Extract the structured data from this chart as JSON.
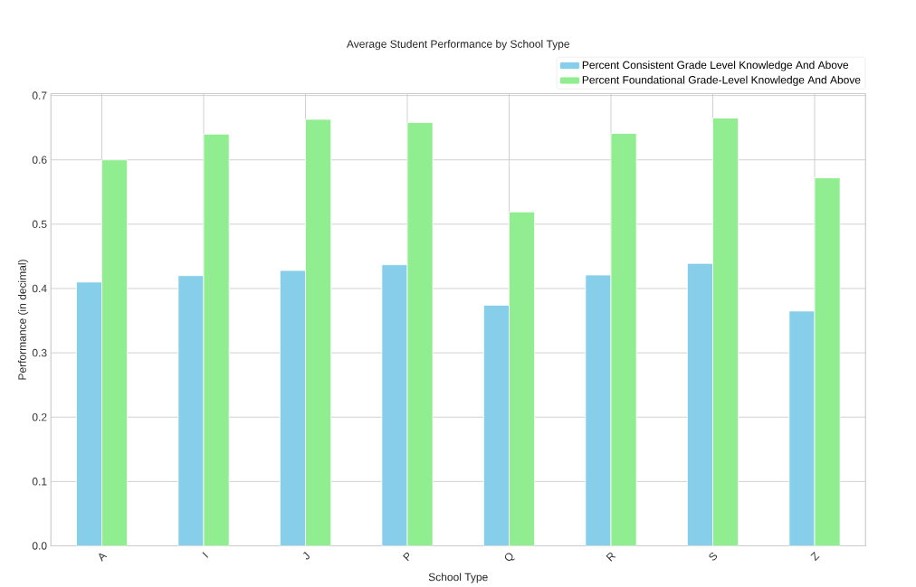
{
  "chart_data": {
    "type": "bar",
    "title": "Average Student Performance by School Type",
    "xlabel": "School Type",
    "ylabel": "Performance (in decimal)",
    "categories": [
      "A",
      "I",
      "J",
      "P",
      "Q",
      "R",
      "S",
      "Z"
    ],
    "series": [
      {
        "name": "Percent Consistent Grade Level Knowledge And Above",
        "color": "#87ceeb",
        "values": [
          0.41,
          0.42,
          0.428,
          0.437,
          0.374,
          0.421,
          0.439,
          0.365
        ]
      },
      {
        "name": "Percent Foundational Grade-Level Knowledge And Above",
        "color": "#90ee90",
        "values": [
          0.6,
          0.64,
          0.663,
          0.658,
          0.519,
          0.641,
          0.665,
          0.572
        ]
      }
    ],
    "ylim": [
      0,
      0.703
    ],
    "yticks": [
      {
        "value": 0,
        "label": "0.0"
      },
      {
        "value": 0.1,
        "label": "0.1"
      },
      {
        "value": 0.2,
        "label": "0.2"
      },
      {
        "value": 0.3,
        "label": "0.3"
      },
      {
        "value": 0.4,
        "label": "0.4"
      },
      {
        "value": 0.5,
        "label": "0.5"
      },
      {
        "value": 0.6,
        "label": "0.6"
      },
      {
        "value": 0.7,
        "label": "0.7"
      }
    ],
    "grid": true,
    "legend": "top right"
  }
}
